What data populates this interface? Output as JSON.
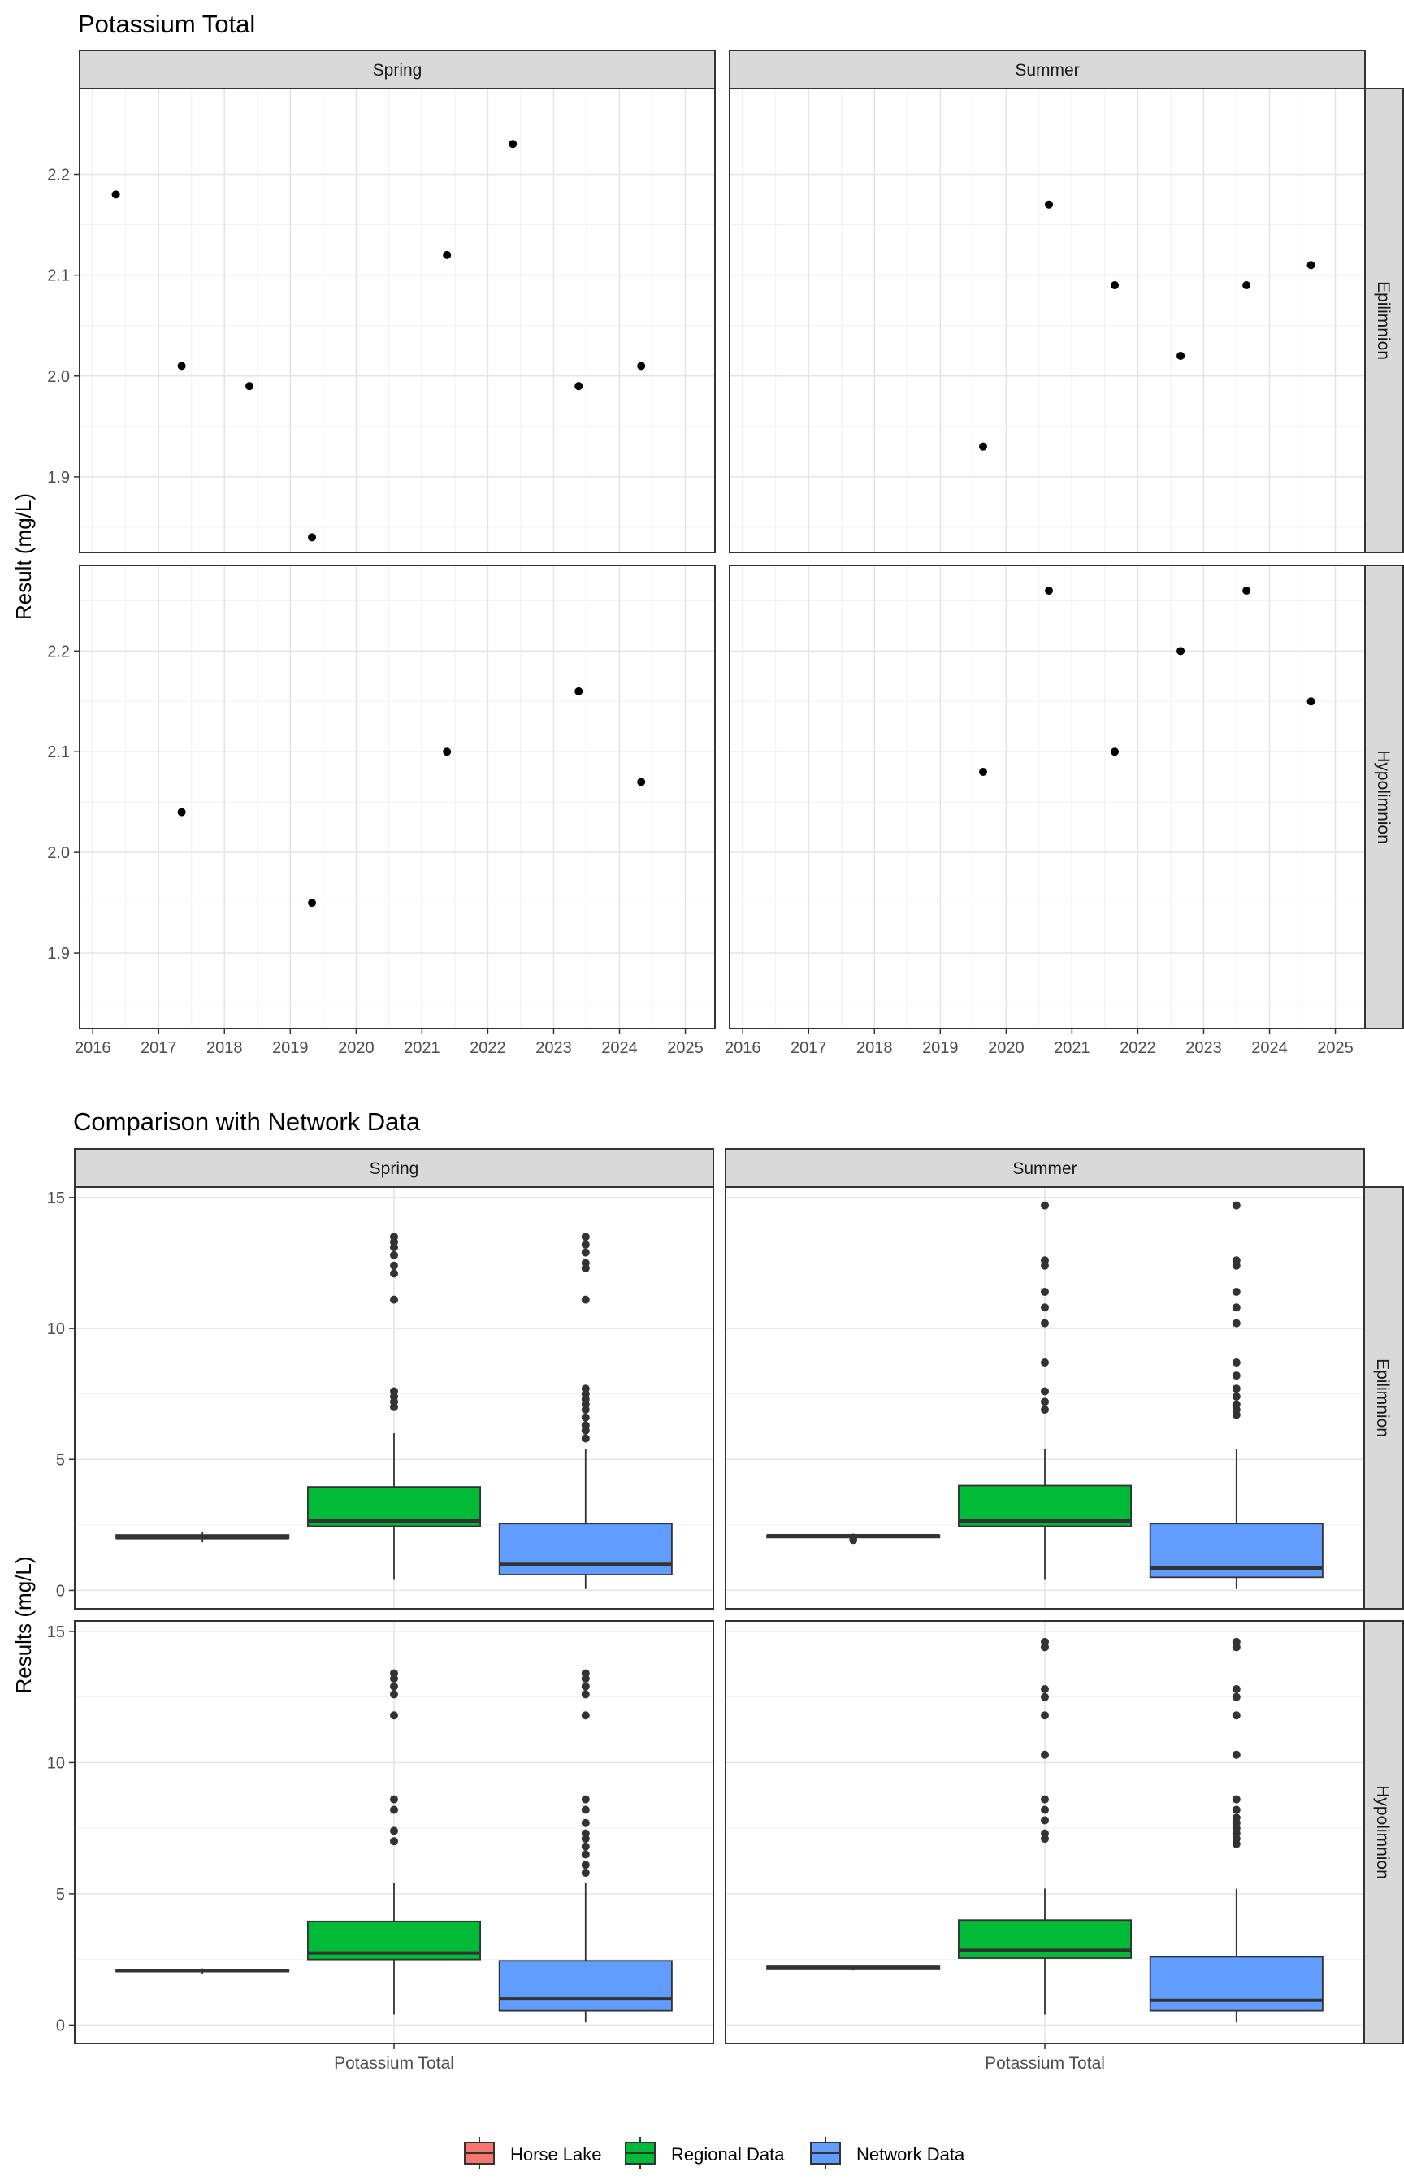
{
  "chart_data": [
    {
      "type": "scatter",
      "title": "Potassium Total",
      "ylabel": "Result (mg/L)",
      "xlabel": "",
      "column_strips": [
        "Spring",
        "Summer"
      ],
      "row_strips": [
        "Epilimnion",
        "Hypolimnion"
      ],
      "x_ticks": [
        "2016",
        "2017",
        "2018",
        "2019",
        "2020",
        "2021",
        "2022",
        "2023",
        "2024",
        "2025"
      ],
      "y_ticks": [
        "1.9",
        "2.0",
        "2.1",
        "2.2"
      ],
      "xlim": [
        2015.8,
        2025.45
      ],
      "ylim": [
        1.825,
        2.285
      ],
      "grid": true,
      "panels": [
        {
          "column": "Spring",
          "row": "Epilimnion",
          "x": [
            2016.35,
            2017.35,
            2018.38,
            2019.33,
            2021.38,
            2022.38,
            2023.38,
            2024.33
          ],
          "y": [
            2.18,
            2.01,
            1.99,
            1.84,
            2.12,
            2.23,
            1.99,
            2.01
          ]
        },
        {
          "column": "Summer",
          "row": "Epilimnion",
          "x": [
            2019.65,
            2020.65,
            2021.65,
            2022.65,
            2023.65,
            2024.63
          ],
          "y": [
            1.93,
            2.17,
            2.09,
            2.02,
            2.09,
            2.11
          ]
        },
        {
          "column": "Spring",
          "row": "Hypolimnion",
          "x": [
            2017.35,
            2019.33,
            2021.38,
            2023.38,
            2024.33
          ],
          "y": [
            2.04,
            1.95,
            2.1,
            2.16,
            2.07
          ]
        },
        {
          "column": "Summer",
          "row": "Hypolimnion",
          "x": [
            2019.65,
            2020.65,
            2021.65,
            2022.65,
            2023.65,
            2024.63
          ],
          "y": [
            2.08,
            2.26,
            2.1,
            2.2,
            2.26,
            2.15
          ]
        }
      ]
    },
    {
      "type": "box",
      "title": "Comparison with Network Data",
      "ylabel": "Results (mg/L)",
      "xlabel": "",
      "categories": [
        "Potassium Total"
      ],
      "column_strips": [
        "Spring",
        "Summer"
      ],
      "row_strips": [
        "Epilimnion",
        "Hypolimnion"
      ],
      "y_ticks": [
        "0",
        "5",
        "10",
        "15"
      ],
      "ylim": [
        -0.7,
        15.4
      ],
      "grid": true,
      "legend": {
        "position": "bottom",
        "items": [
          {
            "name": "Horse Lake",
            "color": "#F8766D"
          },
          {
            "name": "Regional Data",
            "color": "#00BA38"
          },
          {
            "name": "Network Data",
            "color": "#619CFF"
          }
        ]
      },
      "panels": [
        {
          "column": "Spring",
          "row": "Epilimnion",
          "series": [
            {
              "name": "Horse Lake",
              "color": "#F8766D",
              "box": [
                1.84,
                1.99,
                2.01,
                2.12,
                2.23
              ],
              "outliers": []
            },
            {
              "name": "Regional Data",
              "color": "#00BA38",
              "box": [
                0.4,
                2.45,
                2.65,
                3.95,
                6.0
              ],
              "outliers": [
                7.0,
                7.2,
                7.4,
                7.6,
                11.1,
                12.1,
                12.4,
                12.8,
                13.1,
                13.3,
                13.5
              ]
            },
            {
              "name": "Network Data",
              "color": "#619CFF",
              "box": [
                0.05,
                0.6,
                1.0,
                2.55,
                5.4
              ],
              "outliers": [
                5.8,
                6.1,
                6.3,
                6.6,
                6.9,
                7.1,
                7.3,
                7.5,
                7.7,
                11.1,
                12.3,
                12.5,
                12.9,
                13.2,
                13.5
              ]
            }
          ]
        },
        {
          "column": "Summer",
          "row": "Epilimnion",
          "series": [
            {
              "name": "Horse Lake",
              "color": "#F8766D",
              "box": [
                1.98,
                2.02,
                2.09,
                2.11,
                2.17
              ],
              "outliers": [
                1.93
              ]
            },
            {
              "name": "Regional Data",
              "color": "#00BA38",
              "box": [
                0.4,
                2.45,
                2.65,
                4.0,
                5.4
              ],
              "outliers": [
                6.9,
                7.2,
                7.6,
                8.7,
                10.2,
                10.8,
                11.4,
                12.4,
                12.6,
                14.7
              ]
            },
            {
              "name": "Network Data",
              "color": "#619CFF",
              "box": [
                0.05,
                0.5,
                0.85,
                2.55,
                5.4
              ],
              "outliers": [
                6.7,
                6.9,
                7.1,
                7.4,
                7.7,
                8.2,
                8.7,
                10.2,
                10.8,
                11.4,
                12.4,
                12.6,
                14.7
              ]
            }
          ]
        },
        {
          "column": "Spring",
          "row": "Hypolimnion",
          "series": [
            {
              "name": "Horse Lake",
              "color": "#F8766D",
              "box": [
                1.95,
                2.04,
                2.07,
                2.1,
                2.16
              ],
              "outliers": []
            },
            {
              "name": "Regional Data",
              "color": "#00BA38",
              "box": [
                0.4,
                2.5,
                2.75,
                3.95,
                5.4
              ],
              "outliers": [
                7.0,
                7.4,
                8.2,
                8.6,
                11.8,
                12.6,
                12.9,
                13.2,
                13.4
              ]
            },
            {
              "name": "Network Data",
              "color": "#619CFF",
              "box": [
                0.1,
                0.55,
                1.0,
                2.45,
                5.4
              ],
              "outliers": [
                5.8,
                6.1,
                6.5,
                6.8,
                7.1,
                7.3,
                7.7,
                8.2,
                8.6,
                11.8,
                12.6,
                12.9,
                13.2,
                13.4
              ]
            }
          ]
        },
        {
          "column": "Summer",
          "row": "Hypolimnion",
          "series": [
            {
              "name": "Horse Lake",
              "color": "#F8766D",
              "box": [
                2.08,
                2.12,
                2.18,
                2.24,
                2.26
              ],
              "outliers": []
            },
            {
              "name": "Regional Data",
              "color": "#00BA38",
              "box": [
                0.4,
                2.55,
                2.85,
                4.0,
                5.2
              ],
              "outliers": [
                7.1,
                7.3,
                7.8,
                8.2,
                8.6,
                10.3,
                11.8,
                12.5,
                12.8,
                14.4,
                14.6
              ]
            },
            {
              "name": "Network Data",
              "color": "#619CFF",
              "box": [
                0.1,
                0.55,
                0.95,
                2.6,
                5.2
              ],
              "outliers": [
                6.9,
                7.1,
                7.3,
                7.5,
                7.7,
                7.9,
                8.2,
                8.6,
                10.3,
                11.8,
                12.5,
                12.8,
                14.4,
                14.6
              ]
            }
          ]
        }
      ]
    }
  ]
}
